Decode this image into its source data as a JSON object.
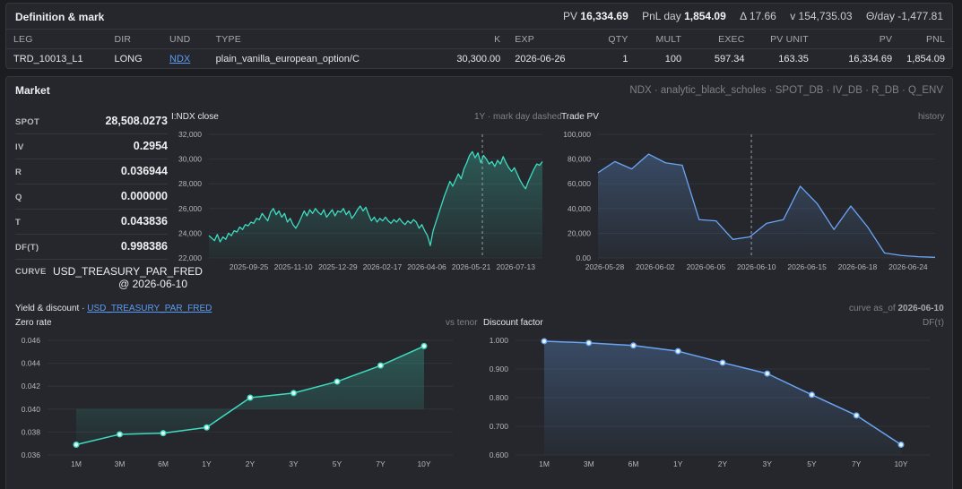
{
  "definition": {
    "title": "Definition & mark",
    "kpis": {
      "pv_label": "PV",
      "pv_value": "16,334.69",
      "pnl_label": "PnL day",
      "pnl_value": "1,854.09",
      "delta": "Δ 17.66",
      "vega": "v 154,735.03",
      "theta": "Θ/day -1,477.81"
    },
    "columns": [
      "LEG",
      "DIR",
      "UND",
      "TYPE",
      "K",
      "EXP",
      "QTY",
      "MULT",
      "EXEC",
      "PV UNIT",
      "PV",
      "PNL"
    ],
    "row": {
      "leg": "TRD_10013_L1",
      "dir": "LONG",
      "und": "NDX",
      "type": "plain_vanilla_european_option/C",
      "k": "30,300.00",
      "exp": "2026-06-26",
      "qty": "1",
      "mult": "100",
      "exec": "597.34",
      "pv_unit": "163.35",
      "pv": "16,334.69",
      "pnl": "1,854.09"
    }
  },
  "market": {
    "title": "Market",
    "sources": "NDX · analytic_black_scholes · SPOT_DB · IV_DB · R_DB · Q_ENV",
    "spot_label": "SPOT",
    "spot": "28,508.0273",
    "iv_label": "IV",
    "iv": "0.2954",
    "r_label": "R",
    "r": "0.036944",
    "q_label": "Q",
    "q": "0.000000",
    "t_label": "T",
    "t": "0.043836",
    "df_label": "DF(T)",
    "df": "0.998386",
    "curve_label": "CURVE",
    "curve_name": "USD_TREASURY_PAR_FRED",
    "curve_asof": "@ 2026-06-10",
    "close_title": "I:NDX close",
    "close_note": "1Y · mark day dashed",
    "pv_title": "Trade PV",
    "pv_note": "history",
    "yield_title": "Yield & discount · ",
    "yield_link": "USD_TREASURY_PAR_FRED",
    "curve_asof_label": "curve as_of ",
    "curve_asof_date": "2026-06-10",
    "zero_title": "Zero rate",
    "zero_note": "vs tenor",
    "df_title": "Discount factor",
    "df_note": "DF(τ)"
  },
  "colors": {
    "teal": "#3ddcc0",
    "blue": "#6aa5f5",
    "bg": "#25272c"
  },
  "chart_data": [
    {
      "type": "area",
      "title": "I:NDX close",
      "x_ticks": [
        "2025-09-25",
        "2025-11-10",
        "2025-12-29",
        "2026-02-17",
        "2026-04-06",
        "2026-05-21",
        "2026-07-13"
      ],
      "ylim": [
        22000,
        32000
      ],
      "y_ticks": [
        "22,000",
        "24,000",
        "26,000",
        "28,000",
        "30,000",
        "32,000"
      ],
      "y_tick_values": [
        22000,
        24000,
        26000,
        28000,
        30000,
        32000
      ],
      "mark_day": "2026-06-10",
      "values": [
        23800,
        23600,
        23400,
        23900,
        23300,
        23700,
        23500,
        24000,
        23800,
        24200,
        24100,
        24500,
        24300,
        24700,
        24600,
        24900,
        24800,
        25200,
        25100,
        25600,
        25300,
        25000,
        25700,
        26000,
        25500,
        25800,
        25300,
        25600,
        24900,
        25200,
        24700,
        24400,
        24800,
        25300,
        25800,
        25400,
        25900,
        25600,
        26000,
        25700,
        25500,
        25900,
        25300,
        25600,
        25900,
        25400,
        25800,
        25700,
        26000,
        25500,
        25800,
        25200,
        25500,
        25900,
        26200,
        25800,
        26100,
        25500,
        25000,
        25300,
        24900,
        25200,
        25000,
        25300,
        25000,
        24800,
        25100,
        24900,
        25200,
        24900,
        24700,
        25000,
        24800,
        25100,
        24900,
        24400,
        24700,
        24200,
        23800,
        23000,
        24200,
        24900,
        25600,
        26300,
        27000,
        27600,
        28200,
        27800,
        28300,
        28800,
        28400,
        29200,
        29700,
        30300,
        30600,
        30100,
        30500,
        29700,
        30300,
        30000,
        29600,
        29800,
        29400,
        29900,
        29600,
        30200,
        29700,
        29300,
        29000,
        29300,
        28800,
        28300,
        27900,
        27600,
        28200,
        28700,
        29200,
        29600,
        29500,
        29800
      ]
    },
    {
      "type": "area",
      "title": "Trade PV",
      "x_ticks": [
        "2026-05-28",
        "2026-06-02",
        "2026-06-05",
        "2026-06-10",
        "2026-06-15",
        "2026-06-18",
        "2026-06-24"
      ],
      "ylim": [
        0,
        100000
      ],
      "y_ticks": [
        "0.00",
        "20,000",
        "40,000",
        "60,000",
        "80,000",
        "100,000"
      ],
      "y_tick_values": [
        0,
        20000,
        40000,
        60000,
        80000,
        100000
      ],
      "mark_day": "2026-06-10",
      "values": [
        69000,
        78000,
        72000,
        84000,
        77000,
        75000,
        31000,
        30000,
        15000,
        17000,
        28000,
        31000,
        58000,
        44000,
        23000,
        42000,
        25000,
        4000,
        2000,
        1000,
        500
      ]
    },
    {
      "type": "line",
      "title": "Zero rate",
      "categories": [
        "1M",
        "3M",
        "6M",
        "1Y",
        "2Y",
        "3Y",
        "5Y",
        "7Y",
        "10Y"
      ],
      "values": [
        0.0369,
        0.0378,
        0.0379,
        0.0384,
        0.041,
        0.0414,
        0.0424,
        0.0438,
        0.0455
      ],
      "ylim": [
        0.036,
        0.046
      ],
      "y_ticks": [
        "0.036",
        "0.038",
        "0.040",
        "0.042",
        "0.044",
        "0.046"
      ],
      "y_tick_values": [
        0.036,
        0.038,
        0.04,
        0.042,
        0.044,
        0.046
      ]
    },
    {
      "type": "line",
      "title": "Discount factor",
      "categories": [
        "1M",
        "3M",
        "6M",
        "1Y",
        "2Y",
        "3Y",
        "5Y",
        "7Y",
        "10Y"
      ],
      "values": [
        0.997,
        0.991,
        0.982,
        0.962,
        0.922,
        0.884,
        0.81,
        0.738,
        0.636
      ],
      "ylim": [
        0.6,
        1.0
      ],
      "y_ticks": [
        "0.600",
        "0.700",
        "0.800",
        "0.900",
        "1.000"
      ],
      "y_tick_values": [
        0.6,
        0.7,
        0.8,
        0.9,
        1.0
      ]
    }
  ]
}
